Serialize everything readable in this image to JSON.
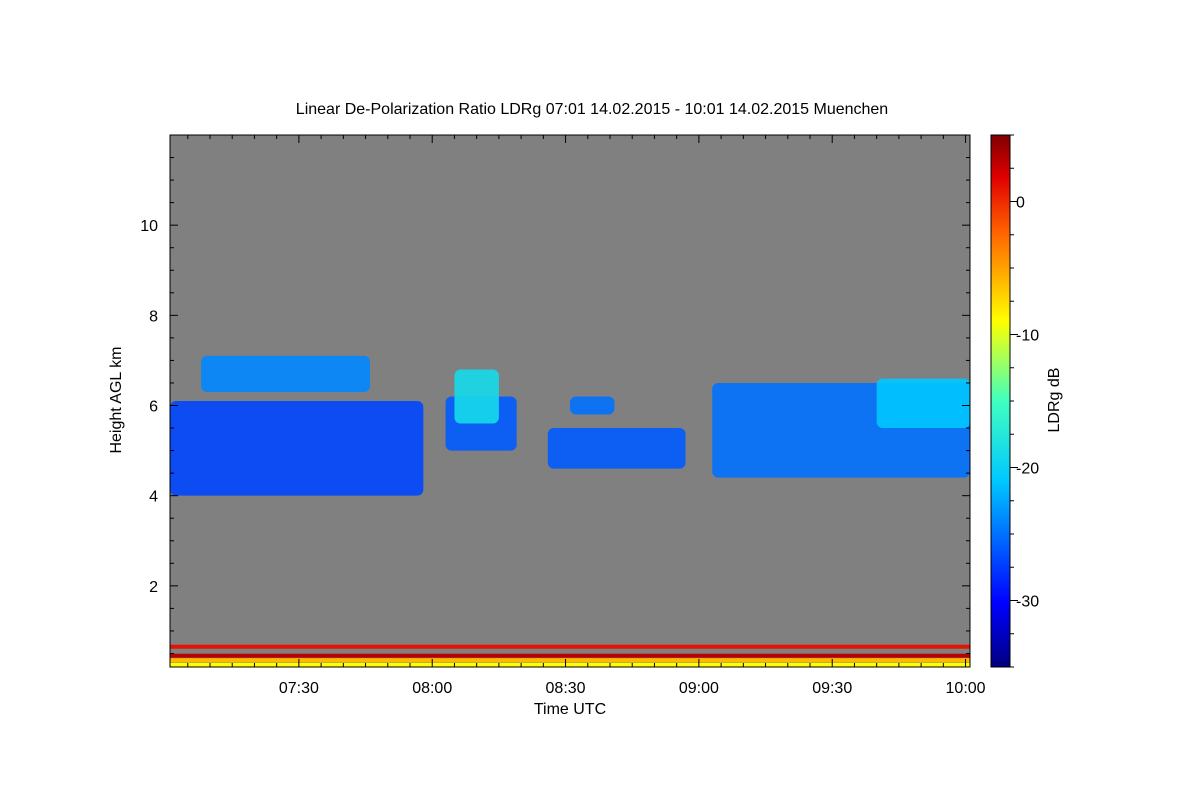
{
  "chart_data": {
    "type": "heatmap",
    "title": "Linear De-Polarization Ratio LDRg   07:01 14.02.2015 - 10:01 14.02.2015 Muenchen",
    "xlabel": "Time UTC",
    "ylabel": "Height AGL km",
    "colorbar_label": "LDRg dB",
    "x_range_minutes_utc": [
      421,
      601
    ],
    "x_ticks": [
      {
        "minute": 450,
        "label": "07:30"
      },
      {
        "minute": 480,
        "label": "08:00"
      },
      {
        "minute": 510,
        "label": "08:30"
      },
      {
        "minute": 540,
        "label": "09:00"
      },
      {
        "minute": 570,
        "label": "09:30"
      },
      {
        "minute": 600,
        "label": "10:00"
      }
    ],
    "y_range_km": [
      0.2,
      12.0
    ],
    "y_ticks": [
      2,
      4,
      6,
      8,
      10
    ],
    "colorbar_range_db": [
      -35,
      5
    ],
    "colorbar_ticks": [
      0,
      -10,
      -20,
      -30
    ],
    "background_color": "#808080",
    "cloud_regions": [
      {
        "t_start": 421,
        "t_end": 478,
        "h_bottom": 4.0,
        "h_top": 6.1,
        "ldr": -27
      },
      {
        "t_start": 428,
        "t_end": 466,
        "h_bottom": 6.3,
        "h_top": 7.1,
        "ldr": -24
      },
      {
        "t_start": 483,
        "t_end": 499,
        "h_bottom": 5.0,
        "h_top": 6.2,
        "ldr": -26
      },
      {
        "t_start": 485,
        "t_end": 495,
        "h_bottom": 5.6,
        "h_top": 6.8,
        "ldr": -19
      },
      {
        "t_start": 506,
        "t_end": 537,
        "h_bottom": 4.6,
        "h_top": 5.5,
        "ldr": -26
      },
      {
        "t_start": 511,
        "t_end": 521,
        "h_bottom": 5.8,
        "h_top": 6.2,
        "ldr": -25
      },
      {
        "t_start": 543,
        "t_end": 601,
        "h_bottom": 4.4,
        "h_top": 6.5,
        "ldr": -25
      },
      {
        "t_start": 580,
        "t_end": 601,
        "h_bottom": 5.5,
        "h_top": 6.6,
        "ldr": -21
      }
    ],
    "near_ground_bands": [
      {
        "h": 0.65,
        "ldr": 1
      },
      {
        "h": 0.45,
        "ldr": 3
      },
      {
        "h": 0.35,
        "ldr": -6
      },
      {
        "h": 0.25,
        "ldr": -9
      }
    ]
  }
}
